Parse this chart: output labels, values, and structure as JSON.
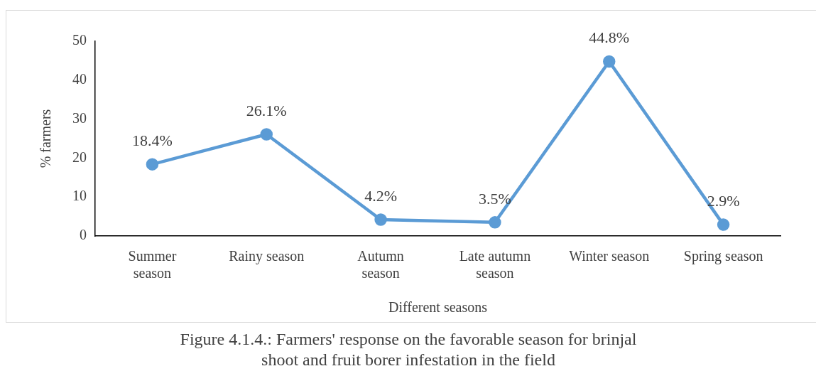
{
  "chart_data": {
    "type": "line",
    "xlabel": "Different seasons",
    "ylabel": "% farmers",
    "categories": [
      "Summer season",
      "Rainy season",
      "Autumn season",
      "Late autumn season",
      "Winter season",
      "Spring season"
    ],
    "series": [
      {
        "color": "#5b9bd5",
        "values": [
          18.4,
          26.1,
          4.2,
          3.5,
          44.8,
          2.9
        ],
        "value_labels": [
          "18.4%",
          "26.1%",
          "4.2%",
          "3.5%",
          "44.8%",
          "2.9%"
        ]
      }
    ],
    "ylim": [
      0,
      50
    ],
    "yticks": [
      0,
      10,
      20,
      30,
      40,
      50
    ],
    "grid": false,
    "legend": false,
    "marker": "circle",
    "line_style": "solid",
    "annotations": [
      "Figure 4.1.4.: Farmers' response on the favorable season for brinjal shoot and fruit borer infestation in the field"
    ]
  }
}
